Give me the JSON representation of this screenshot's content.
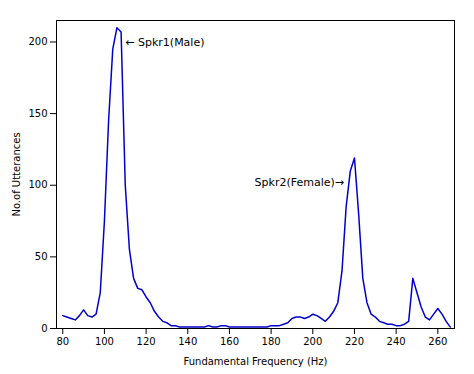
{
  "chart_data": {
    "type": "line",
    "xlabel": "Fundamental Frequency (Hz)",
    "ylabel": "No.of Utterances",
    "xlim": [
      77,
      268
    ],
    "ylim": [
      0,
      215
    ],
    "xticks": [
      80,
      100,
      120,
      140,
      160,
      180,
      200,
      220,
      240,
      260
    ],
    "yticks": [
      0,
      50,
      100,
      150,
      200
    ],
    "grid": false,
    "color": "#0000cc",
    "annotations": [
      {
        "text": "← Spkr1(Male)",
        "x": 110,
        "y": 200
      },
      {
        "text": "Spkr2(Female)→",
        "x": 215,
        "y": 102
      }
    ],
    "x": [
      80,
      82,
      84,
      86,
      88,
      90,
      92,
      94,
      96,
      98,
      100,
      102,
      104,
      106,
      108,
      110,
      112,
      114,
      116,
      118,
      120,
      122,
      124,
      126,
      128,
      130,
      132,
      134,
      136,
      138,
      140,
      142,
      144,
      146,
      148,
      150,
      152,
      154,
      156,
      158,
      160,
      162,
      164,
      166,
      168,
      170,
      172,
      174,
      176,
      178,
      180,
      182,
      184,
      186,
      188,
      190,
      192,
      194,
      196,
      198,
      200,
      202,
      204,
      206,
      208,
      210,
      212,
      214,
      216,
      218,
      220,
      222,
      224,
      226,
      228,
      230,
      232,
      234,
      236,
      238,
      240,
      242,
      244,
      246,
      248,
      250,
      252,
      254,
      256,
      258,
      260,
      262,
      264,
      266
    ],
    "values": [
      9,
      8,
      7,
      6,
      9,
      13,
      9,
      8,
      10,
      25,
      75,
      145,
      195,
      210,
      207,
      100,
      55,
      35,
      28,
      27,
      22,
      18,
      12,
      8,
      5,
      4,
      2,
      2,
      1,
      1,
      1,
      1,
      1,
      1,
      1,
      2,
      1,
      1,
      2,
      2,
      1,
      1,
      1,
      1,
      1,
      1,
      1,
      1,
      1,
      1,
      2,
      2,
      2,
      3,
      4,
      7,
      8,
      8,
      7,
      8,
      10,
      9,
      7,
      5,
      8,
      12,
      18,
      40,
      85,
      110,
      119,
      80,
      35,
      18,
      10,
      8,
      5,
      4,
      3,
      3,
      2,
      2,
      3,
      5,
      35,
      25,
      15,
      8,
      6,
      10,
      14,
      10,
      5,
      1
    ]
  }
}
